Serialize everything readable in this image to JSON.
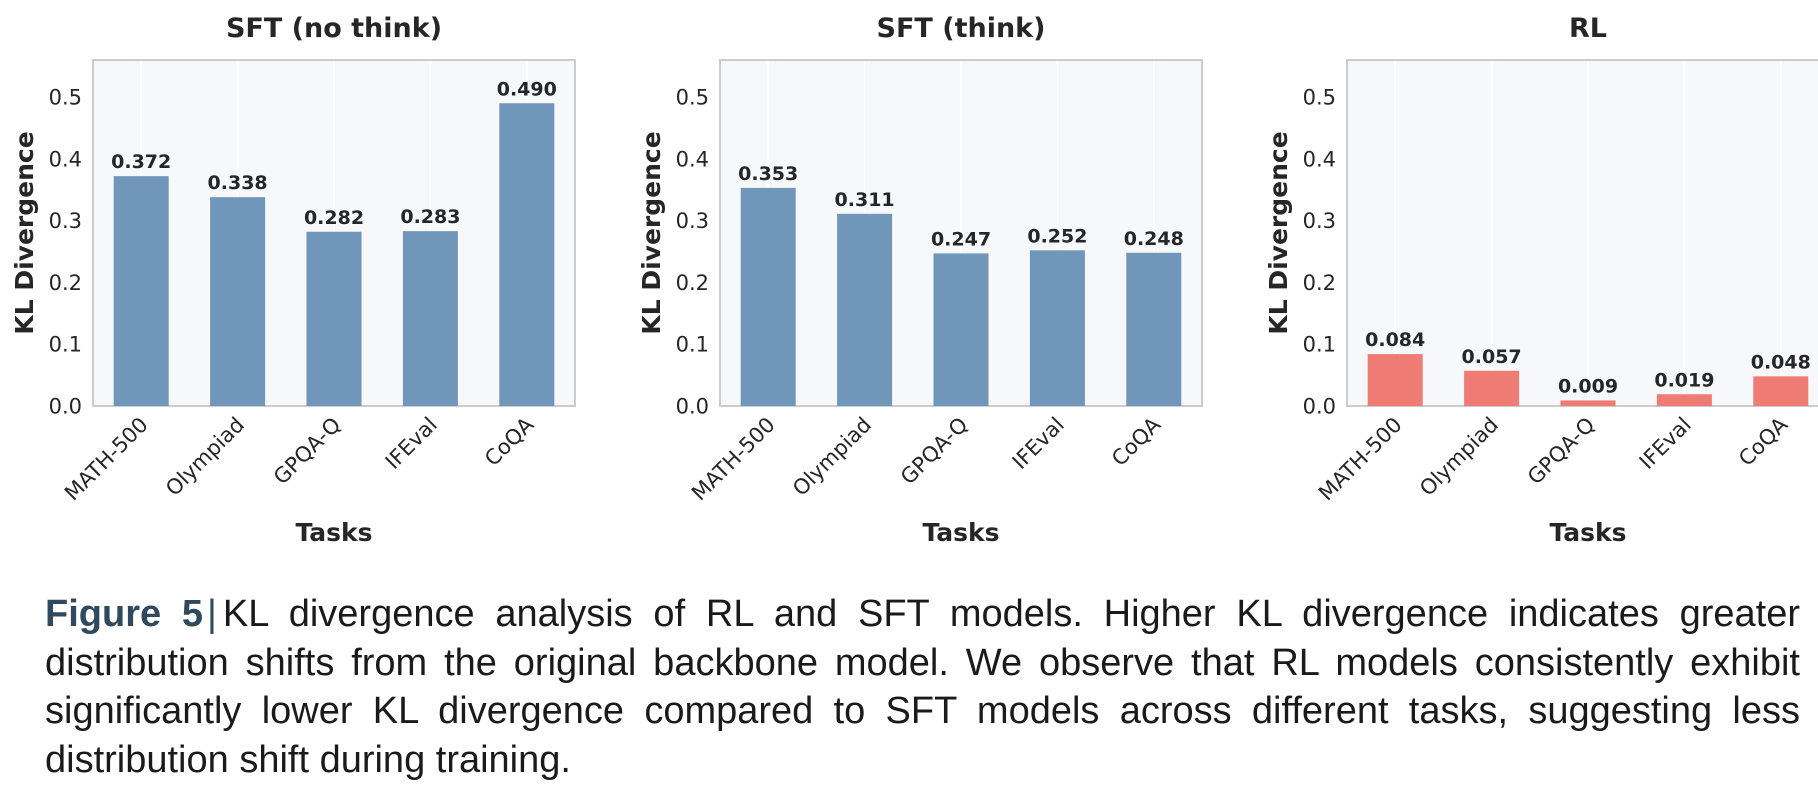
{
  "chart_data": [
    {
      "type": "bar",
      "title": "SFT (no think)",
      "xlabel": "Tasks",
      "ylabel": "KL Divergence",
      "categories": [
        "MATH-500",
        "Olympiad",
        "GPQA-Q",
        "IFEval",
        "CoQA"
      ],
      "values": [
        0.372,
        0.338,
        0.282,
        0.283,
        0.49
      ],
      "value_labels": [
        "0.372",
        "0.338",
        "0.282",
        "0.283",
        "0.490"
      ],
      "yticks": [
        "0.0",
        "0.1",
        "0.2",
        "0.3",
        "0.4",
        "0.5"
      ],
      "ylim": [
        0,
        0.56
      ],
      "color": "#7096b9",
      "grid": true
    },
    {
      "type": "bar",
      "title": "SFT (think)",
      "xlabel": "Tasks",
      "ylabel": "KL Divergence",
      "categories": [
        "MATH-500",
        "Olympiad",
        "GPQA-Q",
        "IFEval",
        "CoQA"
      ],
      "values": [
        0.353,
        0.311,
        0.247,
        0.252,
        0.248
      ],
      "value_labels": [
        "0.353",
        "0.311",
        "0.247",
        "0.252",
        "0.248"
      ],
      "yticks": [
        "0.0",
        "0.1",
        "0.2",
        "0.3",
        "0.4",
        "0.5"
      ],
      "ylim": [
        0,
        0.56
      ],
      "color": "#7096b9",
      "grid": true
    },
    {
      "type": "bar",
      "title": "RL",
      "xlabel": "Tasks",
      "ylabel": "KL Divergence",
      "categories": [
        "MATH-500",
        "Olympiad",
        "GPQA-Q",
        "IFEval",
        "CoQA"
      ],
      "values": [
        0.084,
        0.057,
        0.009,
        0.019,
        0.048
      ],
      "value_labels": [
        "0.084",
        "0.057",
        "0.009",
        "0.019",
        "0.048"
      ],
      "yticks": [
        "0.0",
        "0.1",
        "0.2",
        "0.3",
        "0.4",
        "0.5"
      ],
      "ylim": [
        0,
        0.56
      ],
      "color": "#ee7b74",
      "grid": true
    }
  ],
  "caption": {
    "label": "Figure 5",
    "separator": "|",
    "text": "KL divergence analysis of RL and SFT models.  Higher KL divergence indicates greater distribution shifts from the original backbone model. We observe that RL models consistently exhibit significantly lower KL divergence compared to SFT models across different tasks, suggesting less distribution shift during training."
  },
  "colors": {
    "axes_bg": "#f7f8fa",
    "frame": "#cccccc",
    "gridline": "#ffffff",
    "text": "#262626"
  }
}
